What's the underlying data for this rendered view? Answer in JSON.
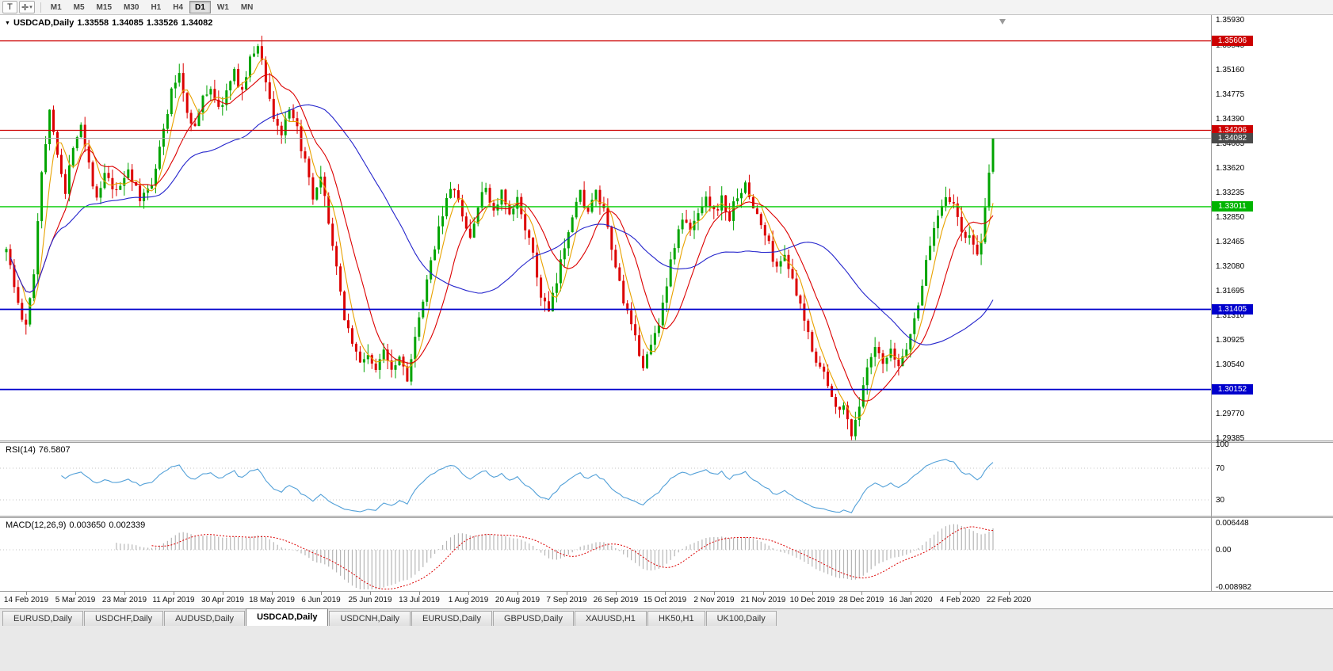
{
  "toolbar": {
    "text_tool": "T",
    "cursor_tool": "✛",
    "dropdown_arrow": "▾",
    "timeframes": [
      "M1",
      "M5",
      "M15",
      "M30",
      "H1",
      "H4",
      "D1",
      "W1",
      "MN"
    ],
    "active_timeframe": "D1"
  },
  "chart": {
    "header": {
      "expand_glyph": "▼",
      "symbol": "USDCAD,Daily",
      "open": "1.33558",
      "high": "1.34085",
      "low": "1.33526",
      "close": "1.34082"
    },
    "price_ticks": [
      "1.35930",
      "1.35545",
      "1.35160",
      "1.34775",
      "1.34390",
      "1.34005",
      "1.33620",
      "1.33235",
      "1.32850",
      "1.32465",
      "1.32080",
      "1.31695",
      "1.31310",
      "1.30925",
      "1.30540",
      "1.30155",
      "1.29770",
      "1.29385"
    ],
    "levels": [
      {
        "name": "resistance-upper",
        "price": 1.35606,
        "label": "1.35606",
        "line_color": "#cc0000",
        "badge_color": "#cc0000",
        "width": 1.2
      },
      {
        "name": "resistance-lower",
        "price": 1.34206,
        "label": "1.34206",
        "line_color": "#cc0000",
        "badge_color": "#cc0000",
        "width": 1.2
      },
      {
        "name": "current-bid",
        "price": 1.34082,
        "label": "1.34082",
        "line_color": "#a9a9a9",
        "badge_color": "#4a4a4a",
        "width": 1
      },
      {
        "name": "pivot-green",
        "price": 1.33011,
        "label": "1.33011",
        "line_color": "#00cc00",
        "badge_color": "#00b400",
        "width": 1.4
      },
      {
        "name": "support-upper",
        "price": 1.31405,
        "label": "1.31405",
        "line_color": "#0000cc",
        "badge_color": "#0000cc",
        "width": 1.8
      },
      {
        "name": "support-lower",
        "price": 1.30152,
        "label": "1.30152",
        "line_color": "#0000cc",
        "badge_color": "#0000cc",
        "width": 1.8
      }
    ],
    "date_labels": [
      "14 Feb 2019",
      "5 Mar 2019",
      "23 Mar 2019",
      "11 Apr 2019",
      "30 Apr 2019",
      "18 May 2019",
      "6 Jun 2019",
      "25 Jun 2019",
      "13 Jul 2019",
      "1 Aug 2019",
      "20 Aug 2019",
      "7 Sep 2019",
      "26 Sep 2019",
      "15 Oct 2019",
      "2 Nov 2019",
      "21 Nov 2019",
      "10 Dec 2019",
      "28 Dec 2019",
      "16 Jan 2020",
      "4 Feb 2020",
      "22 Feb 2020"
    ],
    "colors": {
      "up": "#00a400",
      "down": "#dc0000",
      "rsi": "#52a0d8",
      "macd_hist": "#b6b6b6",
      "macd_signal": "#dc0000"
    }
  },
  "rsi_panel": {
    "name": "RSI(14)",
    "value": "76.5807",
    "axis": [
      "100",
      "70",
      "30"
    ],
    "levels": [
      70,
      30
    ]
  },
  "macd_panel": {
    "name": "MACD(12,26,9)",
    "value_main": "0.003650",
    "value_signal": "0.002339",
    "axis_top": "0.006448",
    "axis_zero": "0.00",
    "axis_bottom": "-0.008982"
  },
  "tabs": [
    "EURUSD,Daily",
    "USDCHF,Daily",
    "AUDUSD,Daily",
    "USDCAD,Daily",
    "USDCNH,Daily",
    "EURUSD,Daily",
    "GBPUSD,Daily",
    "XAUUSD,H1",
    "HK50,H1",
    "UK100,Daily"
  ],
  "active_tab_index": 3,
  "active_tab": "USDCAD,Daily",
  "chart_data": {
    "type": "candlestick",
    "symbol": "USDCAD",
    "timeframe": "Daily",
    "price_range_shown": [
      1.293,
      1.3601
    ],
    "last_candle": {
      "open": 1.33558,
      "high": 1.34085,
      "low": 1.33526,
      "close": 1.34082
    },
    "num_candles": 252,
    "seed": 1337,
    "anchors": [
      [
        0,
        1.324
      ],
      [
        2,
        1.3175
      ],
      [
        4,
        1.3125
      ],
      [
        5,
        1.3112
      ],
      [
        7,
        1.32
      ],
      [
        9,
        1.336
      ],
      [
        11,
        1.3448
      ],
      [
        13,
        1.339
      ],
      [
        15,
        1.332
      ],
      [
        17,
        1.34
      ],
      [
        19,
        1.3432
      ],
      [
        21,
        1.337
      ],
      [
        23,
        1.331
      ],
      [
        25,
        1.335
      ],
      [
        28,
        1.332
      ],
      [
        31,
        1.3362
      ],
      [
        34,
        1.331
      ],
      [
        37,
        1.334
      ],
      [
        40,
        1.342
      ],
      [
        42,
        1.348
      ],
      [
        44,
        1.3512
      ],
      [
        46,
        1.345
      ],
      [
        48,
        1.3425
      ],
      [
        50,
        1.347
      ],
      [
        52,
        1.349
      ],
      [
        54,
        1.3452
      ],
      [
        56,
        1.348
      ],
      [
        58,
        1.351
      ],
      [
        60,
        1.3482
      ],
      [
        62,
        1.353
      ],
      [
        64,
        1.3556
      ],
      [
        66,
        1.35
      ],
      [
        68,
        1.344
      ],
      [
        70,
        1.3415
      ],
      [
        72,
        1.3448
      ],
      [
        74,
        1.342
      ],
      [
        76,
        1.337
      ],
      [
        78,
        1.331
      ],
      [
        80,
        1.3342
      ],
      [
        82,
        1.328
      ],
      [
        84,
        1.32
      ],
      [
        86,
        1.313
      ],
      [
        88,
        1.309
      ],
      [
        90,
        1.3055
      ],
      [
        92,
        1.3072
      ],
      [
        94,
        1.304
      ],
      [
        96,
        1.3082
      ],
      [
        98,
        1.305
      ],
      [
        100,
        1.3068
      ],
      [
        102,
        1.3035
      ],
      [
        104,
        1.3092
      ],
      [
        106,
        1.3152
      ],
      [
        108,
        1.3212
      ],
      [
        110,
        1.3272
      ],
      [
        112,
        1.3312
      ],
      [
        114,
        1.3332
      ],
      [
        116,
        1.3282
      ],
      [
        118,
        1.3252
      ],
      [
        120,
        1.3302
      ],
      [
        122,
        1.3332
      ],
      [
        124,
        1.3292
      ],
      [
        126,
        1.3322
      ],
      [
        128,
        1.3282
      ],
      [
        130,
        1.3312
      ],
      [
        132,
        1.3272
      ],
      [
        134,
        1.3222
      ],
      [
        136,
        1.3162
      ],
      [
        138,
        1.3135
      ],
      [
        140,
        1.3182
      ],
      [
        142,
        1.3242
      ],
      [
        144,
        1.3292
      ],
      [
        146,
        1.3322
      ],
      [
        148,
        1.3292
      ],
      [
        150,
        1.3322
      ],
      [
        152,
        1.3292
      ],
      [
        154,
        1.3232
      ],
      [
        156,
        1.3182
      ],
      [
        158,
        1.3132
      ],
      [
        160,
        1.3092
      ],
      [
        162,
        1.3055
      ],
      [
        164,
        1.3082
      ],
      [
        166,
        1.3122
      ],
      [
        168,
        1.3182
      ],
      [
        170,
        1.3242
      ],
      [
        172,
        1.3282
      ],
      [
        174,
        1.3262
      ],
      [
        176,
        1.3292
      ],
      [
        178,
        1.3322
      ],
      [
        180,
        1.3292
      ],
      [
        182,
        1.3312
      ],
      [
        184,
        1.3282
      ],
      [
        186,
        1.3322
      ],
      [
        188,
        1.3332
      ],
      [
        190,
        1.3302
      ],
      [
        192,
        1.3272
      ],
      [
        194,
        1.3242
      ],
      [
        196,
        1.3202
      ],
      [
        198,
        1.3232
      ],
      [
        200,
        1.3182
      ],
      [
        202,
        1.3142
      ],
      [
        204,
        1.3102
      ],
      [
        206,
        1.3062
      ],
      [
        208,
        1.304
      ],
      [
        210,
        1.3
      ],
      [
        213,
        1.2985
      ],
      [
        215,
        1.2948
      ],
      [
        217,
        1.299
      ],
      [
        219,
        1.3045
      ],
      [
        221,
        1.3078
      ],
      [
        223,
        1.3052
      ],
      [
        225,
        1.3072
      ],
      [
        227,
        1.3052
      ],
      [
        229,
        1.3082
      ],
      [
        231,
        1.3122
      ],
      [
        233,
        1.3182
      ],
      [
        235,
        1.3242
      ],
      [
        237,
        1.3292
      ],
      [
        239,
        1.3322
      ],
      [
        241,
        1.3302
      ],
      [
        243,
        1.3262
      ],
      [
        245,
        1.325
      ],
      [
        247,
        1.3232
      ],
      [
        248,
        1.3238
      ],
      [
        249,
        1.3292
      ],
      [
        250,
        1.3356
      ],
      [
        251,
        1.34082
      ]
    ],
    "moving_averages": [
      {
        "period": 5,
        "color": "#e8a200"
      },
      {
        "period": 12,
        "color": "#dc0000"
      },
      {
        "period": 40,
        "color": "#2424cc"
      }
    ],
    "rsi_period": 14,
    "rsi_last": 76.5807,
    "macd_periods": [
      12,
      26,
      9
    ],
    "macd_last": 0.00365,
    "macd_signal_last": 0.002339
  }
}
